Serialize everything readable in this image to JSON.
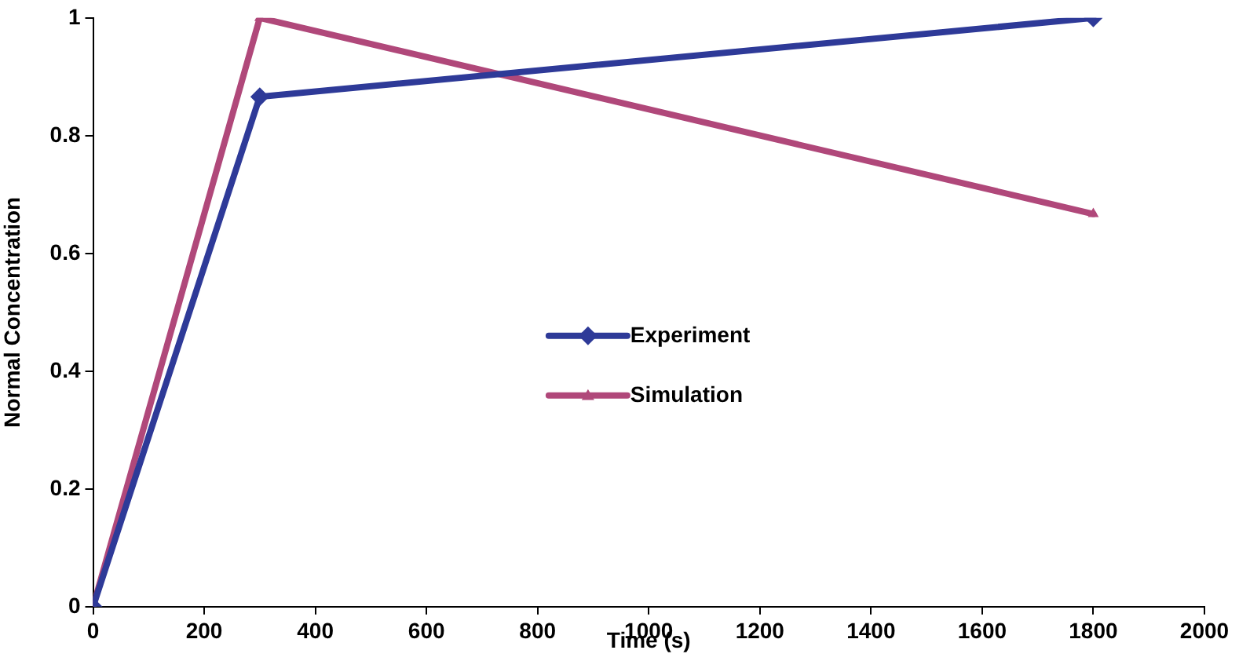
{
  "chart_data": {
    "type": "line",
    "xlabel": "Time (s)",
    "ylabel": "Normal Concentration",
    "series": [
      {
        "name": "Experiment",
        "color": "#2e3a98",
        "x": [
          0,
          300,
          1800
        ],
        "values": [
          0,
          0.866,
          1
        ],
        "marker": "diamond"
      },
      {
        "name": "Simulation",
        "color": "#b0487a",
        "x": [
          0,
          300,
          1800
        ],
        "values": [
          0,
          1,
          0.667
        ],
        "marker": "triangle"
      }
    ],
    "xlim": [
      0,
      2000
    ],
    "xticks": [
      0,
      200,
      400,
      600,
      800,
      1000,
      1200,
      1400,
      1600,
      1800,
      2000
    ],
    "ylim": [
      0,
      1
    ],
    "yticks": [
      0,
      0.2,
      0.4,
      0.6,
      0.8,
      1
    ],
    "grid": false,
    "legend": "center",
    "line_style": "solid"
  }
}
